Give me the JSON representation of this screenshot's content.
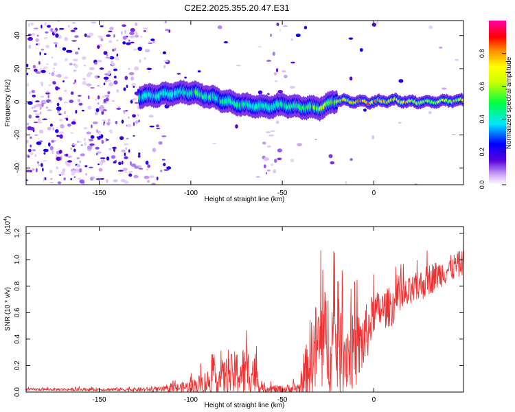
{
  "title": "C2E2.2025.355.20.47.E31",
  "chart_data": [
    {
      "type": "heatmap",
      "name": "spectrogram",
      "title": "C2E2.2025.355.20.47.E31",
      "xlabel": "Height of straight line (km)",
      "ylabel": "Frequency (Hz)",
      "xlim": [
        -190,
        49
      ],
      "ylim": [
        -50,
        49
      ],
      "xticks": [
        -150,
        -100,
        -50,
        0
      ],
      "yticks": [
        -40,
        -20,
        0,
        20,
        40
      ],
      "signal_track": {
        "x": [
          -128,
          -110,
          -100,
          -90,
          -80,
          -70,
          -60,
          -50,
          -40,
          -30,
          -20,
          -10,
          0,
          10,
          20,
          30,
          49
        ],
        "freq_hz": [
          3,
          5,
          6,
          3,
          0,
          -2,
          -3,
          -2,
          -3,
          -4,
          1,
          0,
          0,
          1,
          0,
          0,
          1
        ],
        "peak_amplitude": [
          0.4,
          0.35,
          0.5,
          0.5,
          0.45,
          0.45,
          0.4,
          0.45,
          0.5,
          0.6,
          0.65,
          0.8,
          0.95,
          0.8,
          0.75,
          0.6,
          0.65
        ]
      },
      "noise_region_x": [
        -190,
        -128
      ],
      "colorbar": {
        "label": "Normalized spectral amplitude",
        "min": 0.0,
        "max": 1.0,
        "ticks": [
          "0.0",
          "0.2",
          "0.4",
          "0.6",
          "0.8"
        ],
        "tick_values": [
          0.0,
          0.2,
          0.4,
          0.6,
          0.8
        ]
      }
    },
    {
      "type": "line",
      "name": "snr",
      "xlabel": "Height of straight line (km)",
      "ylabel": "SNR (10 * v/v)",
      "multiplier_label": "(x10",
      "multiplier_exp": "4",
      "xlim": [
        -190,
        49
      ],
      "ylim": [
        0,
        1.25
      ],
      "xticks": [
        -150,
        -100,
        -50,
        0
      ],
      "yticks": [
        "0.0",
        "0.2",
        "0.4",
        "0.6",
        "0.8",
        "1.0",
        "1.2"
      ],
      "ytick_values": [
        0,
        0.2,
        0.4,
        0.6,
        0.8,
        1.0,
        1.2
      ],
      "color": "#ee3030",
      "envelope": {
        "x": [
          -190,
          -150,
          -130,
          -115,
          -100,
          -90,
          -80,
          -72,
          -65,
          -62,
          -50,
          -40,
          -35,
          -30,
          -25,
          -20,
          -15,
          -10,
          -5,
          0,
          10,
          20,
          30,
          40,
          49
        ],
        "base": [
          0.02,
          0.02,
          0.02,
          0.02,
          0.04,
          0.08,
          0.12,
          0.15,
          0.15,
          0.03,
          0.02,
          0.03,
          0.25,
          0.35,
          0.4,
          0.35,
          0.3,
          0.3,
          0.4,
          0.6,
          0.65,
          0.75,
          0.85,
          0.92,
          0.98
        ],
        "amplitude": [
          0.01,
          0.012,
          0.015,
          0.02,
          0.05,
          0.1,
          0.15,
          0.2,
          0.18,
          0.03,
          0.03,
          0.05,
          0.3,
          0.4,
          0.4,
          0.38,
          0.3,
          0.28,
          0.25,
          0.15,
          0.15,
          0.12,
          0.12,
          0.1,
          0.1
        ]
      }
    }
  ]
}
